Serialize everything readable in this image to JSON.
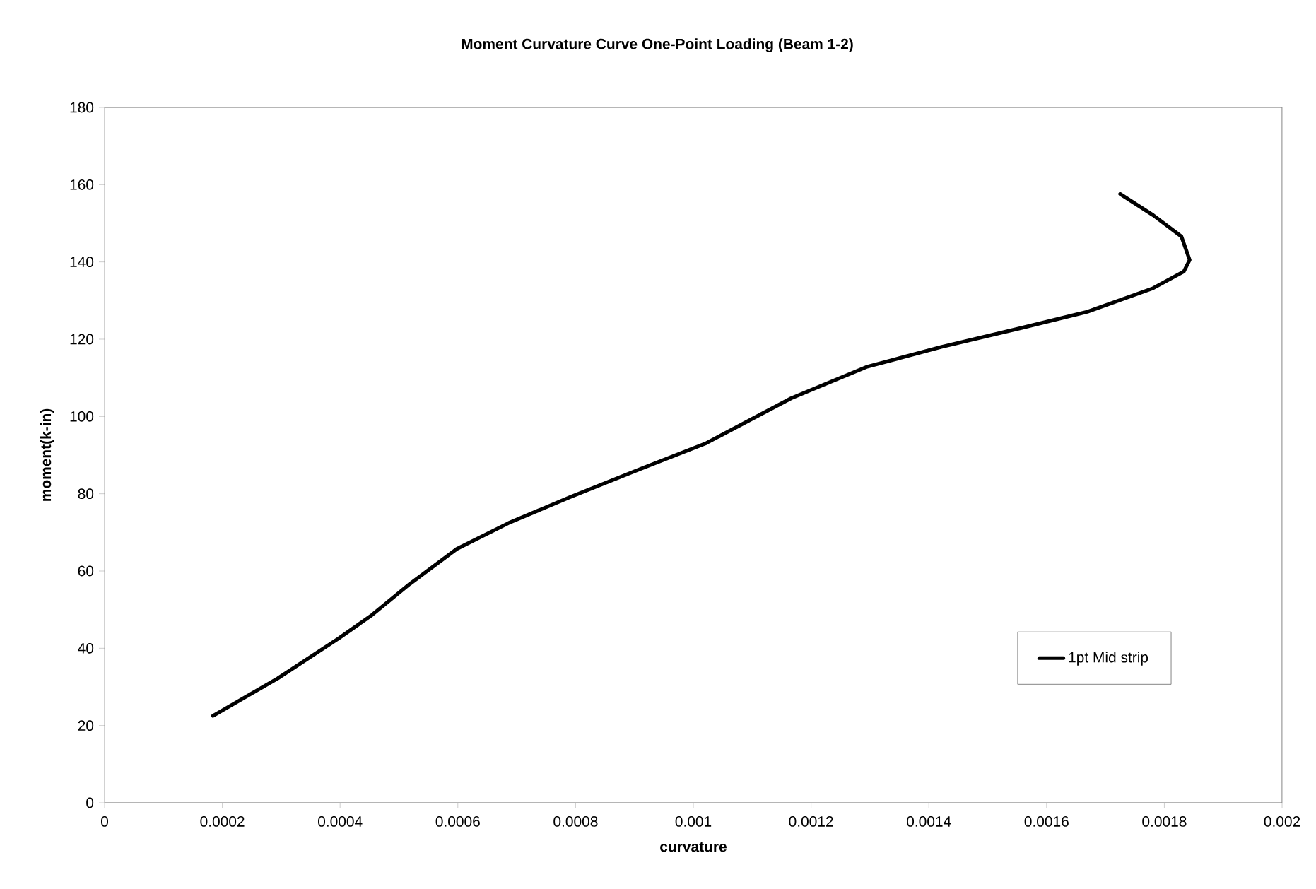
{
  "chart_data": {
    "type": "line",
    "title": "Moment Curvature Curve One-Point Loading (Beam 1-2)",
    "xlabel": "curvature",
    "ylabel": "moment(k-in)",
    "xlim": [
      0,
      0.002
    ],
    "xticks": [
      0,
      0.0002,
      0.0004,
      0.0006,
      0.0008,
      0.001,
      0.0012,
      0.0014,
      0.0016,
      0.0018,
      0.002
    ],
    "ylim": [
      0,
      180
    ],
    "yticks": [
      0,
      20,
      40,
      60,
      80,
      100,
      120,
      140,
      160,
      180
    ],
    "grid": false,
    "legend": "bottom right",
    "marker": "none",
    "line_style": "solid",
    "series": [
      {
        "name": "1pt Mid strip",
        "color": "#000000",
        "x": [
          0.000184,
          0.000294,
          0.000398,
          0.000454,
          0.000518,
          0.000598,
          0.000686,
          0.00079,
          0.00091,
          0.001022,
          0.001166,
          0.001294,
          0.001421,
          0.001557,
          0.001669,
          0.001781,
          0.001833,
          0.001843,
          0.001829,
          0.001781,
          0.001725
        ],
        "values": [
          22.5,
          32.2,
          42.6,
          48.6,
          56.6,
          65.7,
          72.4,
          79.1,
          86.4,
          93.1,
          104.7,
          112.8,
          118,
          122.9,
          127.1,
          133.2,
          137.5,
          140.5,
          146.6,
          152.1,
          157.6
        ]
      }
    ]
  }
}
